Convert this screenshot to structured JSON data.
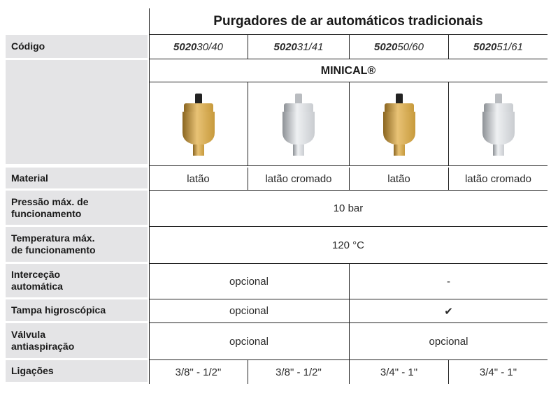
{
  "header": {
    "title": "Purgadores de ar automáticos tradicionais"
  },
  "table": {
    "code_label": "Código",
    "codes": [
      {
        "prefix": "5020",
        "suffix": "30/40"
      },
      {
        "prefix": "5020",
        "suffix": "31/41"
      },
      {
        "prefix": "5020",
        "suffix": "50/60"
      },
      {
        "prefix": "5020",
        "suffix": "51/61"
      }
    ],
    "family": "MINICAL®",
    "rows": [
      {
        "label": "Material",
        "cells": [
          "latão",
          "latão cromado",
          "latão",
          "latão cromado"
        ]
      },
      {
        "label": "Pressão máx. de\nfuncionamento",
        "cells": [
          "10 bar"
        ]
      },
      {
        "label": "Temperatura máx.\nde funcionamento",
        "cells": [
          "120 °C"
        ]
      },
      {
        "label": "Interceção\nautomática",
        "cells": [
          "opcional",
          "-"
        ]
      },
      {
        "label": "Tampa higroscópica",
        "cells": [
          "opcional",
          "✔"
        ]
      },
      {
        "label": "Válvula\nantiaspiração",
        "cells": [
          "opcional",
          "opcional"
        ]
      },
      {
        "label": "Ligações",
        "cells": [
          "3/8\" - 1/2\"",
          "3/8\" - 1/2\"",
          "3/4\" - 1\"",
          "3/4\" - 1\""
        ]
      }
    ]
  }
}
